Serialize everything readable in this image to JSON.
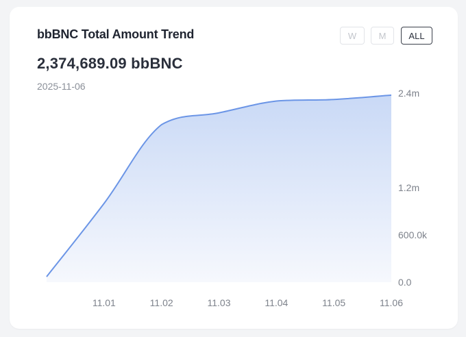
{
  "header": {
    "title": "bbBNC Total Amount Trend",
    "amount": "2,374,689.09 bbBNC",
    "date": "2025-11-06"
  },
  "range_buttons": [
    {
      "label": "W",
      "active": false
    },
    {
      "label": "M",
      "active": false
    },
    {
      "label": "ALL",
      "active": true
    }
  ],
  "colors": {
    "line": "#6b95e6",
    "fill_top": "#c9d9f6",
    "fill_bottom": "#f6f8fd"
  },
  "chart_data": {
    "type": "area",
    "x": [
      "10.31",
      "11.01",
      "11.02",
      "11.03",
      "11.04",
      "11.05",
      "11.06"
    ],
    "xtick_labels": [
      "11.01",
      "11.02",
      "11.03",
      "11.04",
      "11.05",
      "11.06"
    ],
    "series": [
      {
        "values": [
          70000,
          1000000,
          2000000,
          2150000,
          2300000,
          2320000,
          2375000
        ]
      }
    ],
    "yticks": [
      {
        "value": 0,
        "label": "0.0"
      },
      {
        "value": 600000,
        "label": "600.0k"
      },
      {
        "value": 1200000,
        "label": "1.2m"
      },
      {
        "value": 2400000,
        "label": "2.4m"
      }
    ],
    "ylim": [
      0,
      2400000
    ],
    "y_axis_side": "right",
    "grid": false,
    "title": "",
    "xlabel": "",
    "ylabel": ""
  }
}
